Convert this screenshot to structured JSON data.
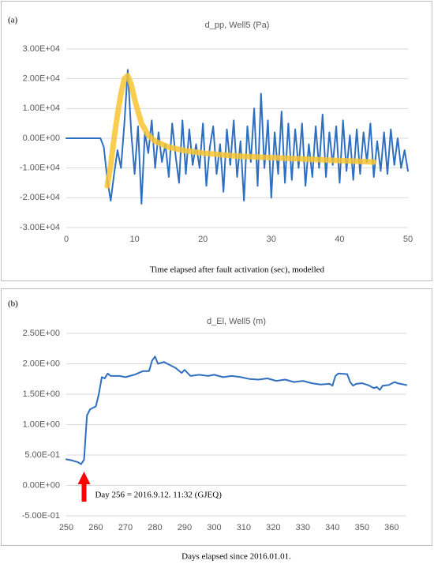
{
  "chart_data": [
    {
      "type": "line",
      "panel_label": "(a)",
      "title": "d_pp, Well5 (Pa)",
      "x_label": "Time elapsed after fault activation (sec), modelled",
      "xlim": [
        0,
        50
      ],
      "xticks": [
        0,
        10,
        20,
        30,
        40,
        50
      ],
      "ylim": [
        -30000,
        30000
      ],
      "yticks": [
        {
          "value": -30000,
          "label": "-3.00E+04"
        },
        {
          "value": -20000,
          "label": "-2.00E+04"
        },
        {
          "value": -10000,
          "label": "-1.00E+04"
        },
        {
          "value": 0,
          "label": "0.00E+00"
        },
        {
          "value": 10000,
          "label": "1.00E+04"
        },
        {
          "value": 20000,
          "label": "2.00E+04"
        },
        {
          "value": 30000,
          "label": "3.00E+04"
        }
      ],
      "grid": true,
      "x": [
        0,
        0.5,
        1,
        1.5,
        2,
        2.5,
        3,
        3.5,
        4,
        4.5,
        5,
        5.5,
        6,
        6.5,
        7,
        7.5,
        8,
        8.5,
        9,
        9.5,
        10,
        10.5,
        11,
        11.5,
        12,
        12.5,
        13,
        13.5,
        14,
        14.5,
        15,
        15.5,
        16,
        16.5,
        17,
        17.5,
        18,
        18.5,
        19,
        19.5,
        20,
        20.5,
        21,
        21.5,
        22,
        22.5,
        23,
        23.5,
        24,
        24.5,
        25,
        25.5,
        26,
        26.5,
        27,
        27.5,
        28,
        28.5,
        29,
        29.5,
        30,
        30.5,
        31,
        31.5,
        32,
        32.5,
        33,
        33.5,
        34,
        34.5,
        35,
        35.5,
        36,
        36.5,
        37,
        37.5,
        38,
        38.5,
        39,
        39.5,
        40,
        40.5,
        41,
        41.5,
        42,
        42.5,
        43,
        43.5,
        44,
        44.5,
        45,
        45.5,
        46,
        46.5,
        47,
        47.5,
        48,
        48.5,
        49,
        49.5,
        50
      ],
      "series": [
        {
          "color": "#2e6fc0",
          "width": 2,
          "values": [
            0,
            0,
            0,
            0,
            0,
            0,
            0,
            0,
            0,
            0,
            0,
            -3000,
            -14000,
            -21000,
            -12000,
            -4000,
            -10000,
            5000,
            23000,
            2000,
            -12000,
            4000,
            -22000,
            2000,
            -5000,
            6000,
            -10000,
            2000,
            -8000,
            -2000,
            -13000,
            5000,
            -6000,
            -15000,
            6000,
            -12000,
            3000,
            -9000,
            -2000,
            -10000,
            5000,
            -16000,
            -3000,
            4000,
            -12000,
            -2000,
            -18000,
            3000,
            -9000,
            6000,
            -13000,
            -1000,
            -21000,
            4000,
            -8000,
            10000,
            -16000,
            15000,
            -10000,
            6000,
            -20000,
            2000,
            -12000,
            9000,
            -15000,
            5000,
            -14000,
            3000,
            -10000,
            5000,
            -16000,
            -2000,
            -13000,
            4000,
            -10000,
            8000,
            -13000,
            2000,
            -9000,
            4000,
            -15000,
            6000,
            -11000,
            1000,
            -14000,
            3000,
            -12000,
            2000,
            -8000,
            5000,
            -13000,
            -1000,
            -11000,
            2000,
            -12000,
            3000,
            -9000,
            0,
            -10000,
            -4000,
            -11000
          ]
        },
        {
          "color": "#f7c431",
          "width": 7,
          "x": [
            6,
            6.5,
            7,
            7.5,
            8,
            8.5,
            9,
            9.5,
            10,
            11,
            12,
            13,
            15,
            17,
            20,
            25,
            30,
            35,
            40,
            45
          ],
          "values": [
            -16000,
            -9000,
            0,
            8000,
            15000,
            20000,
            21000,
            18000,
            13000,
            5000,
            1000,
            -1000,
            -3000,
            -4000,
            -5000,
            -6000,
            -6500,
            -7000,
            -7500,
            -8000
          ]
        }
      ]
    },
    {
      "type": "line",
      "panel_label": "(b)",
      "title": "d_El, Well5 (m)",
      "x_label": "Days elapsed since 2016.01.01.",
      "xlim": [
        250,
        365
      ],
      "xticks": [
        250,
        260,
        270,
        280,
        290,
        300,
        310,
        320,
        330,
        340,
        350,
        360
      ],
      "ylim": [
        -0.5,
        2.5
      ],
      "yticks": [
        {
          "value": -0.5,
          "label": "-5.00E-01"
        },
        {
          "value": 0,
          "label": "0.00E+00"
        },
        {
          "value": 0.5,
          "label": "5.00E-01"
        },
        {
          "value": 1,
          "label": "1.00E+00"
        },
        {
          "value": 1.5,
          "label": "1.50E+00"
        },
        {
          "value": 2,
          "label": "2.00E+00"
        },
        {
          "value": 2.5,
          "label": "2.50E+00"
        }
      ],
      "grid": true,
      "annotation": {
        "text": "Day 256 = 2016.9.12. 11:32 (GJEQ)",
        "x": 256,
        "color": "#ff0000"
      },
      "x": [
        250,
        252,
        254,
        255,
        256,
        257,
        258,
        260,
        261,
        262,
        263,
        264,
        265,
        268,
        270,
        273,
        276,
        278,
        279,
        280,
        281,
        283,
        285,
        287,
        289,
        290,
        292,
        295,
        298,
        300,
        303,
        306,
        309,
        312,
        315,
        318,
        321,
        324,
        327,
        330,
        333,
        336,
        339,
        340,
        341,
        342,
        345,
        346,
        347,
        348,
        350,
        352,
        354,
        355,
        356,
        357,
        359,
        361,
        362,
        365
      ],
      "series": [
        {
          "color": "#2e6fc0",
          "width": 2,
          "values": [
            0.43,
            0.41,
            0.38,
            0.35,
            0.42,
            1.15,
            1.25,
            1.3,
            1.5,
            1.78,
            1.76,
            1.84,
            1.8,
            1.8,
            1.78,
            1.82,
            1.88,
            1.88,
            2.05,
            2.12,
            2.0,
            2.03,
            1.98,
            1.93,
            1.85,
            1.9,
            1.8,
            1.82,
            1.8,
            1.82,
            1.78,
            1.8,
            1.78,
            1.75,
            1.74,
            1.76,
            1.72,
            1.74,
            1.7,
            1.72,
            1.68,
            1.66,
            1.67,
            1.64,
            1.8,
            1.84,
            1.83,
            1.7,
            1.64,
            1.67,
            1.68,
            1.65,
            1.6,
            1.62,
            1.57,
            1.64,
            1.65,
            1.7,
            1.68,
            1.65
          ]
        }
      ]
    }
  ]
}
